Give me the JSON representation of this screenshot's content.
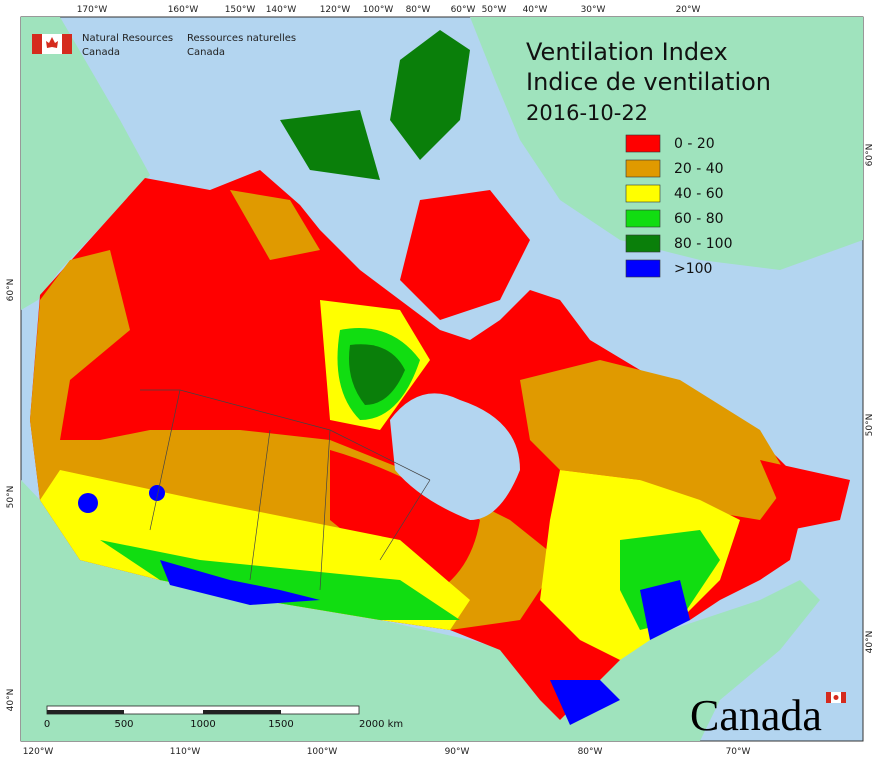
{
  "header": {
    "agency_en": [
      "Natural Resources",
      "Canada"
    ],
    "agency_fr": [
      "Ressources naturelles",
      "Canada"
    ]
  },
  "title": {
    "lines": [
      "Ventilation Index",
      "Indice de ventilation",
      "2016-10-22"
    ]
  },
  "legend": {
    "items": [
      {
        "label": "0 - 20",
        "color": "#ff0000"
      },
      {
        "label": "20 - 40",
        "color": "#e09a00"
      },
      {
        "label": "40 - 60",
        "color": "#ffff00"
      },
      {
        "label": "60 - 80",
        "color": "#11dd11"
      },
      {
        "label": "80 - 100",
        "color": "#0a7f0a"
      },
      {
        "label": ">100",
        "color": "#0000ff"
      }
    ]
  },
  "graticule": {
    "top": [
      "170°W",
      "160°W",
      "150°W",
      "140°W",
      "120°W",
      "100°W",
      "80°W",
      "60°W",
      "50°W",
      "40°W",
      "30°W",
      "20°W"
    ],
    "bottom": [
      "120°W",
      "110°W",
      "100°W",
      "90°W",
      "80°W",
      "70°W"
    ],
    "left": [
      "60°N",
      "50°N",
      "40°N"
    ],
    "right": [
      "60°N",
      "50°N",
      "40°N"
    ]
  },
  "scale_bar": {
    "labels": [
      "0",
      "500",
      "1000",
      "1500",
      "2000 km"
    ]
  },
  "wordmark": "Canada"
}
